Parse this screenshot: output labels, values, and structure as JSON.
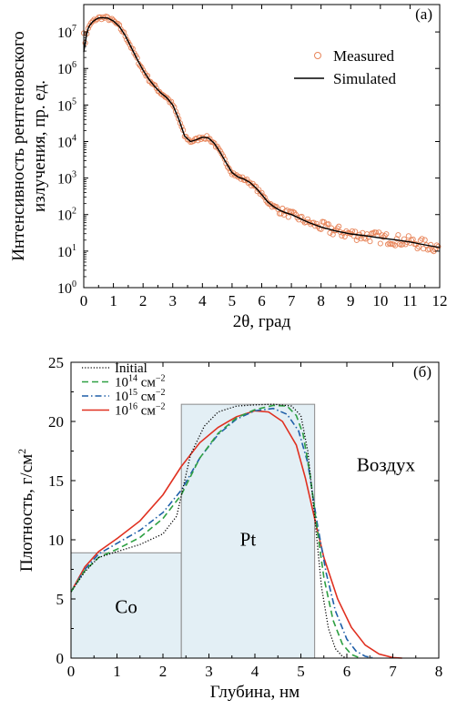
{
  "chart_data": [
    {
      "type": "scatter",
      "panel_label": "(a)",
      "xlabel": "2θ, град",
      "ylabel_line1": "Интенсивность рентгеновского",
      "ylabel_line2": "излучения, пр. ед.",
      "xlim": [
        0,
        12
      ],
      "ylim_log10": [
        0,
        7.75
      ],
      "yscale": "log",
      "x_ticks": [
        "0",
        "1",
        "2",
        "3",
        "4",
        "5",
        "6",
        "7",
        "8",
        "9",
        "10",
        "11",
        "12"
      ],
      "y_ticks": [
        {
          "base": "10",
          "exp": "0"
        },
        {
          "base": "10",
          "exp": "1"
        },
        {
          "base": "10",
          "exp": "2"
        },
        {
          "base": "10",
          "exp": "3"
        },
        {
          "base": "10",
          "exp": "4"
        },
        {
          "base": "10",
          "exp": "5"
        },
        {
          "base": "10",
          "exp": "6"
        },
        {
          "base": "10",
          "exp": "7"
        }
      ],
      "legend": {
        "position": "top-right",
        "measured": "Measured",
        "simulated": "Simulated"
      },
      "colors": {
        "measured": "#e8855a",
        "simulated": "#000000"
      },
      "series": [
        {
          "name": "Simulated",
          "x": [
            0.0,
            0.05,
            0.1,
            0.15,
            0.2,
            0.3,
            0.4,
            0.5,
            0.6,
            0.8,
            1.0,
            1.2,
            1.4,
            1.6,
            1.8,
            2.0,
            2.2,
            2.4,
            2.6,
            2.8,
            3.0,
            3.2,
            3.4,
            3.6,
            3.8,
            4.0,
            4.2,
            4.4,
            4.6,
            4.8,
            5.0,
            5.2,
            5.4,
            5.6,
            5.8,
            6.0,
            6.2,
            6.4,
            6.6,
            6.8,
            7.0,
            7.2,
            7.4,
            7.6,
            7.8,
            8.0,
            8.5,
            9.0,
            9.5,
            10.0,
            10.5,
            11.0,
            11.5,
            12.0
          ],
          "y_log10": [
            6.45,
            6.7,
            6.95,
            7.1,
            7.18,
            7.28,
            7.34,
            7.38,
            7.39,
            7.38,
            7.3,
            7.15,
            6.9,
            6.58,
            6.25,
            5.95,
            5.7,
            5.5,
            5.33,
            5.2,
            5.0,
            4.62,
            4.15,
            4.0,
            4.05,
            4.12,
            4.1,
            3.95,
            3.7,
            3.42,
            3.15,
            3.03,
            2.97,
            2.88,
            2.73,
            2.55,
            2.35,
            2.22,
            2.12,
            2.05,
            2.0,
            1.93,
            1.85,
            1.78,
            1.72,
            1.66,
            1.55,
            1.47,
            1.42,
            1.36,
            1.31,
            1.25,
            1.17,
            1.1
          ]
        },
        {
          "name": "Measured",
          "x_start": 0.0,
          "x_end": 11.95,
          "n_points": 240,
          "note_values": "y follows Simulated curve with scatter increasing with angle"
        }
      ]
    },
    {
      "type": "line",
      "panel_label": "(б)",
      "xlabel": "Глубина, нм",
      "ylabel_prefix": "Плотность, г/см",
      "ylabel_sup": "2",
      "xlim": [
        0,
        8
      ],
      "ylim": [
        0,
        25
      ],
      "x_ticks": [
        "0",
        "1",
        "2",
        "3",
        "4",
        "5",
        "6",
        "7",
        "8"
      ],
      "y_ticks": [
        "0",
        "5",
        "10",
        "15",
        "20",
        "25"
      ],
      "annotations": {
        "co": "Co",
        "pt": "Pt",
        "air": "Воздух"
      },
      "layers": [
        {
          "name": "Co",
          "x0": 0.0,
          "x1": 2.4,
          "density": 8.9
        },
        {
          "name": "Pt",
          "x0": 2.4,
          "x1": 5.3,
          "density": 21.45
        }
      ],
      "legend": {
        "position": "top-left",
        "entries": [
          {
            "label": "Initial",
            "base": "",
            "exp": "",
            "unit": "",
            "unit_exp": "",
            "style": "dotted",
            "color": "#000000"
          },
          {
            "label": "",
            "base": "10",
            "exp": "14",
            "unit": " см",
            "unit_exp": "−2",
            "style": "dashed",
            "color": "#2ea043"
          },
          {
            "label": "",
            "base": "10",
            "exp": "15",
            "unit": " см",
            "unit_exp": "−2",
            "style": "dashdot",
            "color": "#1f5fa8"
          },
          {
            "label": "",
            "base": "10",
            "exp": "16",
            "unit": " см",
            "unit_exp": "−2",
            "style": "solid",
            "color": "#e03020"
          }
        ]
      },
      "series": [
        {
          "name": "Initial",
          "x": [
            0.0,
            0.3,
            0.6,
            1.0,
            1.5,
            2.0,
            2.3,
            2.6,
            2.9,
            3.2,
            3.6,
            4.0,
            4.4,
            4.8,
            5.0,
            5.15,
            5.3,
            5.45,
            5.6,
            5.75,
            5.9,
            6.0
          ],
          "y": [
            5.6,
            7.3,
            8.5,
            9.0,
            9.6,
            10.5,
            12.0,
            17.2,
            19.6,
            20.8,
            21.3,
            21.4,
            21.45,
            21.3,
            20.5,
            17.5,
            12.0,
            6.0,
            2.5,
            0.8,
            0.15,
            0.0
          ]
        },
        {
          "name": "1e14",
          "x": [
            0.0,
            0.3,
            0.6,
            1.0,
            1.5,
            2.0,
            2.4,
            2.8,
            3.2,
            3.6,
            4.0,
            4.4,
            4.7,
            4.9,
            5.05,
            5.2,
            5.35,
            5.5,
            5.7,
            5.9,
            6.1,
            6.3
          ],
          "y": [
            5.6,
            7.4,
            8.5,
            9.2,
            10.2,
            11.8,
            13.8,
            16.9,
            19.0,
            20.3,
            21.0,
            21.35,
            21.3,
            20.5,
            18.9,
            15.5,
            11.0,
            6.8,
            3.2,
            1.2,
            0.3,
            0.0
          ]
        },
        {
          "name": "1e15",
          "x": [
            0.0,
            0.3,
            0.6,
            1.0,
            1.5,
            2.0,
            2.4,
            2.8,
            3.2,
            3.6,
            4.0,
            4.4,
            4.7,
            4.95,
            5.15,
            5.35,
            5.55,
            5.75,
            6.0,
            6.2,
            6.4,
            6.6
          ],
          "y": [
            5.6,
            7.5,
            8.8,
            9.7,
            10.8,
            12.3,
            14.2,
            16.9,
            18.9,
            20.2,
            20.9,
            21.1,
            20.6,
            19.2,
            16.5,
            11.5,
            7.2,
            4.0,
            1.6,
            0.6,
            0.15,
            0.0
          ]
        },
        {
          "name": "1e16",
          "x": [
            0.0,
            0.3,
            0.6,
            1.0,
            1.5,
            2.0,
            2.4,
            2.8,
            3.2,
            3.6,
            4.0,
            4.3,
            4.6,
            4.9,
            5.1,
            5.3,
            5.5,
            5.8,
            6.1,
            6.4,
            6.7,
            7.0,
            7.2
          ],
          "y": [
            5.6,
            7.7,
            9.0,
            10.1,
            11.6,
            13.8,
            16.2,
            18.2,
            19.5,
            20.4,
            20.9,
            20.8,
            20.0,
            18.0,
            15.2,
            11.8,
            8.5,
            5.0,
            2.6,
            1.1,
            0.35,
            0.05,
            0.0
          ]
        }
      ]
    }
  ]
}
